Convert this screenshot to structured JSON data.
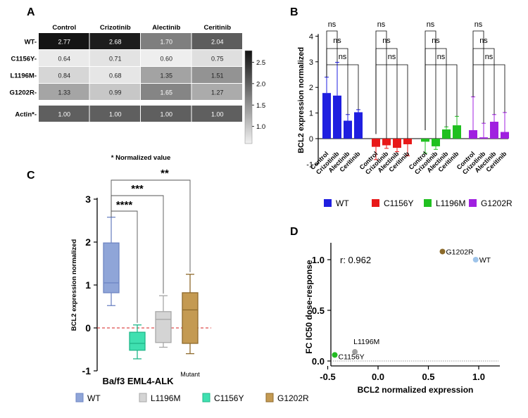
{
  "chart_data": [
    {
      "panel": "A",
      "type": "heatmap",
      "columns": [
        "Control",
        "Crizotinib",
        "Alectinib",
        "Ceritinib"
      ],
      "rows": [
        "WT",
        "C1156Y",
        "L1196M",
        "G1202R"
      ],
      "values": [
        [
          2.77,
          2.68,
          1.7,
          2.04
        ],
        [
          0.64,
          0.71,
          0.6,
          0.75
        ],
        [
          0.84,
          0.68,
          1.35,
          1.51
        ],
        [
          1.33,
          0.99,
          1.65,
          1.27
        ]
      ],
      "display_values": [
        [
          "2.77",
          "2.68",
          "1.70",
          "2.04"
        ],
        [
          "0.64",
          "0.71",
          "0.60",
          "0.75"
        ],
        [
          "0.84",
          "0.68",
          "1.35",
          "1.51"
        ],
        [
          "1.33",
          "0.99",
          "1.65",
          "1.27"
        ]
      ],
      "control_row": {
        "label": "Actin*",
        "values": [
          1.0,
          1.0,
          1.0,
          1.0
        ],
        "display_values": [
          "1.00",
          "1.00",
          "1.00",
          "1.00"
        ]
      },
      "colorbar": {
        "range": [
          0.6,
          2.77
        ],
        "ticks": [
          2.5,
          2.0,
          1.5,
          1.0
        ],
        "tick_labels": [
          "2.5",
          "2.0",
          "1.5",
          "1.0"
        ]
      },
      "footnote": "* Normalized value"
    },
    {
      "panel": "B",
      "type": "bar",
      "ylabel": "BCL2 expression normalized",
      "ylim": [
        -1,
        4
      ],
      "yticks": [
        -1,
        0,
        1,
        2,
        3,
        4
      ],
      "ytick_labels": [
        "-1",
        "0",
        "1",
        "2",
        "3",
        "4"
      ],
      "categories": [
        "Control",
        "Crizotinib",
        "Alectinib",
        "Ceritinib"
      ],
      "series": [
        {
          "name": "WT",
          "color": "#1f1fe0",
          "values": [
            1.78,
            1.68,
            0.7,
            1.03
          ],
          "errors": [
            0.62,
            1.3,
            0.24,
            0.1
          ]
        },
        {
          "name": "C1156Y",
          "color": "#e81818",
          "values": [
            -0.32,
            -0.26,
            -0.36,
            -0.22
          ],
          "errors": [
            0.5,
            0.12,
            0.15,
            0.45
          ]
        },
        {
          "name": "L1196M",
          "color": "#20c020",
          "values": [
            -0.12,
            -0.3,
            0.36,
            0.52
          ],
          "errors": [
            0.45,
            0.12,
            0.1,
            0.35
          ]
        },
        {
          "name": "G1202R",
          "color": "#a020e0",
          "values": [
            0.33,
            0.05,
            0.66,
            0.26
          ],
          "errors": [
            1.3,
            0.55,
            0.28,
            0.76
          ]
        }
      ],
      "significance_label": "ns"
    },
    {
      "panel": "C",
      "type": "box",
      "ylabel": "BCL2 expression normalized",
      "xlabel": "Ba/f3 EML4-ALK",
      "xlabel_sup": "Mutant",
      "ylim": [
        -1,
        3
      ],
      "yticks": [
        -1,
        0,
        1,
        2,
        3
      ],
      "ytick_labels": [
        "-1",
        "0",
        "1",
        "2",
        "3"
      ],
      "reference_line": 0,
      "boxes": [
        {
          "name": "WT",
          "color": "#8fa5d8",
          "edge": "#6f86c4",
          "min": 0.52,
          "q1": 0.82,
          "median": 1.05,
          "q3": 1.98,
          "max": 2.58
        },
        {
          "name": "C1156Y",
          "color": "#3fe0b0",
          "edge": "#20b88a",
          "min": -0.72,
          "q1": -0.52,
          "median": -0.36,
          "q3": -0.1,
          "max": 0.07
        },
        {
          "name": "L1196M",
          "color": "#d4d4d4",
          "edge": "#a8a8a8",
          "min": -0.45,
          "q1": -0.34,
          "median": 0.2,
          "q3": 0.38,
          "max": 0.75
        },
        {
          "name": "G1202R",
          "color": "#c49a52",
          "edge": "#8e6a2c",
          "min": -0.6,
          "q1": -0.36,
          "median": 0.42,
          "q3": 0.82,
          "max": 1.25
        }
      ],
      "significance": [
        {
          "from": "WT",
          "to": "C1156Y",
          "label": "****"
        },
        {
          "from": "WT",
          "to": "L1196M",
          "label": "***"
        },
        {
          "from": "WT",
          "to": "G1202R",
          "label": "**"
        }
      ],
      "legend_order": [
        "WT",
        "L1196M",
        "C1156Y",
        "G1202R"
      ]
    },
    {
      "panel": "D",
      "type": "scatter",
      "xlabel": "BCL2 normalized expression",
      "ylabel": "FC IC50 dose-response",
      "xlim": [
        -0.6,
        1.2
      ],
      "ylim": [
        -0.05,
        1.2
      ],
      "xticks": [
        -0.5,
        0,
        0.5,
        1.0
      ],
      "xtick_labels": [
        "-0.5",
        "0.0",
        "0.5",
        "1.0"
      ],
      "yticks": [
        0,
        0.5,
        1.0
      ],
      "ytick_labels": [
        "0.0",
        "0.5",
        "1.0"
      ],
      "reference_line": 0,
      "annotation": "r: 0.962",
      "points": [
        {
          "name": "G1202R",
          "x": 0.64,
          "y": 1.08,
          "color": "#8b6a2a"
        },
        {
          "name": "WT",
          "x": 0.97,
          "y": 1.0,
          "color": "#9ec4ea"
        },
        {
          "name": "L1196M",
          "x": -0.23,
          "y": 0.09,
          "color": "#a0a0a0"
        },
        {
          "name": "C1156Y",
          "x": -0.43,
          "y": 0.06,
          "color": "#22bb22"
        }
      ]
    }
  ]
}
